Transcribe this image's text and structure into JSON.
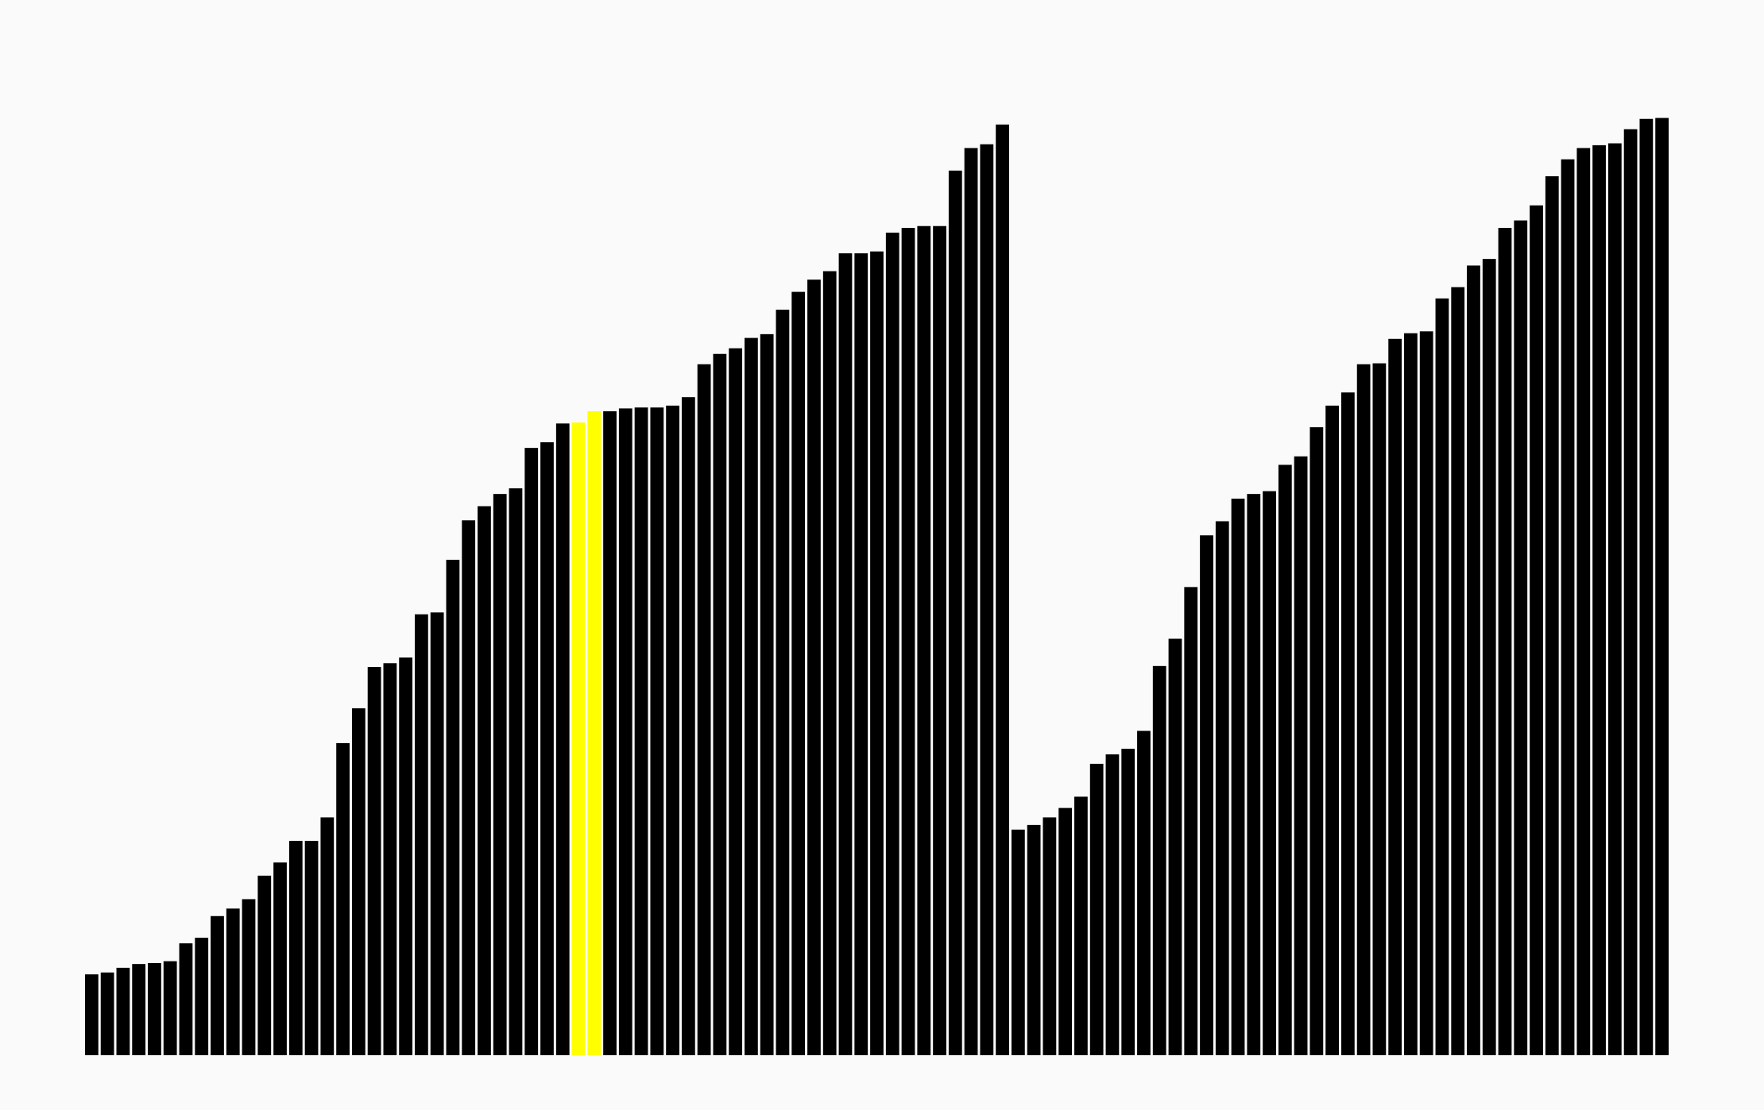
{
  "chart_data": {
    "type": "bar",
    "values": [
      8.6,
      8.8,
      9.3,
      9.7,
      9.8,
      10.0,
      11.9,
      12.5,
      14.8,
      15.6,
      16.6,
      19.1,
      20.5,
      22.8,
      22.8,
      25.3,
      33.2,
      36.9,
      41.3,
      41.7,
      42.3,
      46.9,
      47.1,
      52.7,
      56.9,
      58.4,
      59.7,
      60.3,
      64.6,
      65.2,
      67.2,
      67.3,
      68.5,
      68.5,
      68.8,
      68.9,
      68.9,
      69.1,
      70.0,
      73.5,
      74.6,
      75.2,
      76.3,
      76.7,
      79.3,
      81.2,
      82.5,
      83.4,
      85.3,
      85.3,
      85.5,
      87.5,
      88.0,
      88.2,
      88.2,
      94.1,
      96.5,
      96.9,
      99.0,
      24.0,
      24.5,
      25.3,
      26.3,
      27.5,
      31.0,
      32.0,
      32.6,
      34.5,
      41.4,
      44.3,
      49.8,
      55.3,
      56.8,
      59.2,
      59.7,
      60.0,
      62.8,
      63.7,
      66.8,
      69.1,
      70.5,
      73.5,
      73.6,
      76.2,
      76.8,
      77.0,
      80.5,
      81.7,
      84.0,
      84.7,
      88.0,
      88.8,
      90.4,
      93.5,
      95.3,
      96.5,
      96.8,
      97.0,
      98.5,
      99.6,
      99.7
    ],
    "highlighted_indices": [
      31,
      32
    ],
    "ylim": [
      0,
      100
    ],
    "xlabel": "",
    "ylabel": "",
    "grid": false,
    "legend": "none",
    "colors": {
      "bar": "#000000",
      "highlight": "#ffff00",
      "background": "#fafafa"
    }
  }
}
